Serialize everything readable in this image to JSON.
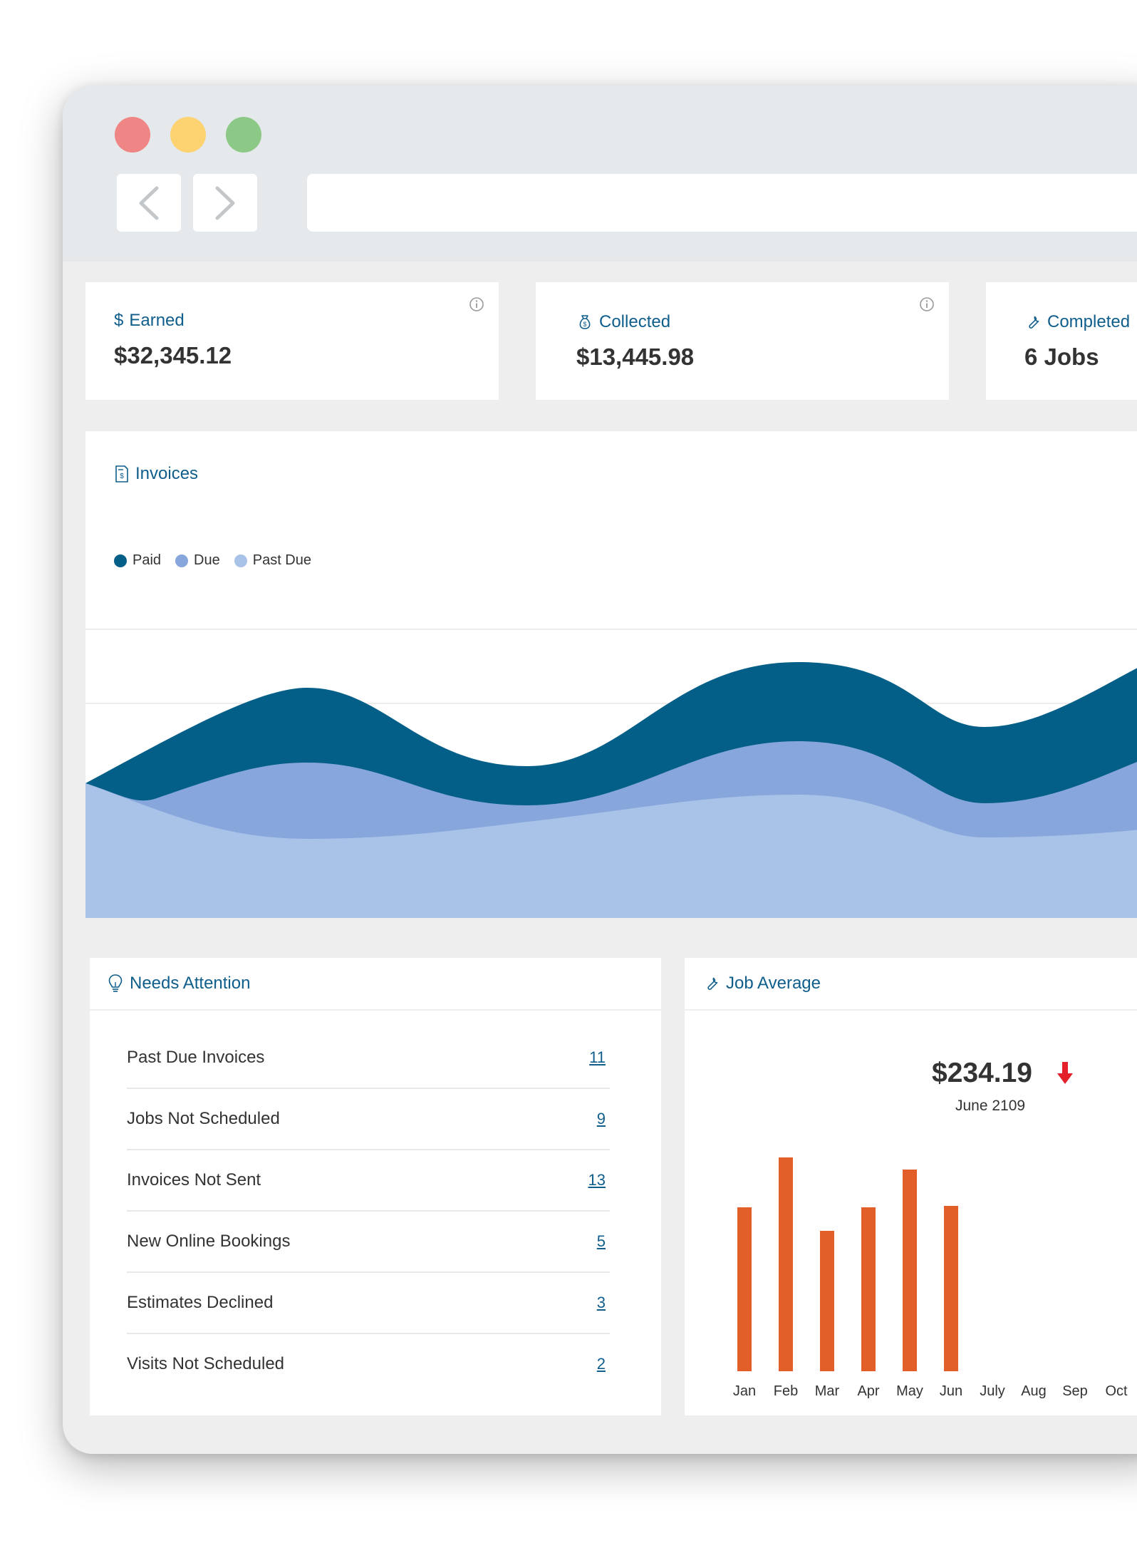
{
  "stats": {
    "earned": {
      "icon": "dollar-icon",
      "title": "Earned",
      "value": "$32,345.12"
    },
    "collected": {
      "icon": "money-bag-icon",
      "title": "Collected",
      "value": "$13,445.98"
    },
    "completed": {
      "icon": "wrench-icon",
      "title": "Completed",
      "value": "6 Jobs"
    }
  },
  "invoices": {
    "title": "Invoices",
    "icon": "invoice-icon",
    "legend": [
      {
        "label": "Paid",
        "color": "#035f88"
      },
      {
        "label": "Due",
        "color": "#86a6dc"
      },
      {
        "label": "Past Due",
        "color": "#a9c2e8"
      }
    ]
  },
  "attention": {
    "title": "Needs Attention",
    "icon": "lightbulb-icon",
    "items": [
      {
        "label": "Past Due Invoices",
        "count": "11"
      },
      {
        "label": "Jobs Not Scheduled",
        "count": "9"
      },
      {
        "label": "Invoices Not Sent",
        "count": "13"
      },
      {
        "label": "New Online Bookings",
        "count": "5"
      },
      {
        "label": "Estimates Declined",
        "count": "3"
      },
      {
        "label": "Visits Not Scheduled",
        "count": "2"
      }
    ]
  },
  "job_average": {
    "title": "Job Average",
    "icon": "wrench-icon",
    "value": "$234.19",
    "trend": "down",
    "trend_color": "#e4202a",
    "subtitle": "June 2109"
  },
  "chart_data": {
    "type": "bar",
    "categories": [
      "Jan",
      "Feb",
      "Mar",
      "Apr",
      "May",
      "Jun",
      "July",
      "Aug",
      "Sep",
      "Oct"
    ],
    "values": [
      230,
      300,
      197,
      230,
      283,
      232,
      null,
      null,
      null,
      null
    ],
    "ylim": [
      0,
      300
    ],
    "grid": false,
    "color": "#e35f2a",
    "title": "",
    "xlabel": "",
    "ylabel": ""
  }
}
